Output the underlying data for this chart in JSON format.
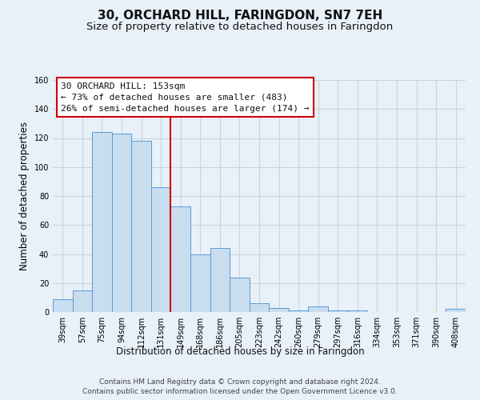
{
  "title": "30, ORCHARD HILL, FARINGDON, SN7 7EH",
  "subtitle": "Size of property relative to detached houses in Faringdon",
  "xlabel": "Distribution of detached houses by size in Faringdon",
  "ylabel": "Number of detached properties",
  "bar_labels": [
    "39sqm",
    "57sqm",
    "75sqm",
    "94sqm",
    "112sqm",
    "131sqm",
    "149sqm",
    "168sqm",
    "186sqm",
    "205sqm",
    "223sqm",
    "242sqm",
    "260sqm",
    "279sqm",
    "297sqm",
    "316sqm",
    "334sqm",
    "353sqm",
    "371sqm",
    "390sqm",
    "408sqm"
  ],
  "bar_values": [
    9,
    15,
    124,
    123,
    118,
    86,
    73,
    40,
    44,
    24,
    6,
    3,
    1,
    4,
    1,
    1,
    0,
    0,
    0,
    0,
    2
  ],
  "bar_color": "#c8ddf0",
  "bar_edge_color": "#5b9bd5",
  "vline_x": 5.5,
  "vline_color": "#cc0000",
  "annotation_line1": "30 ORCHARD HILL: 153sqm",
  "annotation_line2": "← 73% of detached houses are smaller (483)",
  "annotation_line3": "26% of semi-detached houses are larger (174) →",
  "annotation_box_color": "#ffffff",
  "annotation_box_edge": "#cc0000",
  "ylim": [
    0,
    160
  ],
  "yticks": [
    0,
    20,
    40,
    60,
    80,
    100,
    120,
    140,
    160
  ],
  "footnote1": "Contains HM Land Registry data © Crown copyright and database right 2024.",
  "footnote2": "Contains public sector information licensed under the Open Government Licence v3.0.",
  "bg_color": "#e8f0f8",
  "plot_bg_color": "#e8f0f8",
  "grid_color": "#c8d4e0",
  "title_fontsize": 11,
  "subtitle_fontsize": 9.5,
  "axis_label_fontsize": 8.5,
  "tick_fontsize": 7,
  "annotation_fontsize": 8,
  "footnote_fontsize": 6.5
}
